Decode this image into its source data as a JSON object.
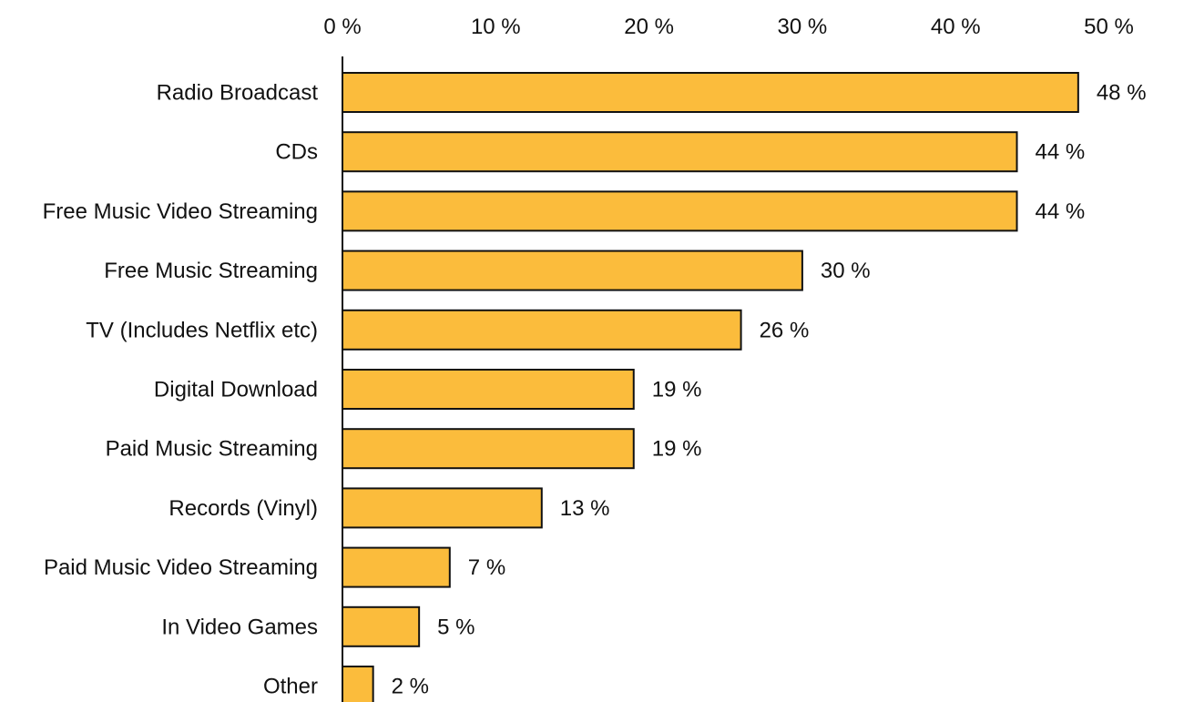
{
  "chart_data": {
    "type": "bar",
    "orientation": "horizontal",
    "title": "",
    "xlabel": "",
    "ylabel": "",
    "xlim": [
      0,
      50
    ],
    "ticks": [
      0,
      10,
      20,
      30,
      40,
      50
    ],
    "tick_labels": [
      "0 %",
      "10 %",
      "20 %",
      "30 %",
      "40 %",
      "50 %"
    ],
    "categories": [
      "Radio Broadcast",
      "CDs",
      "Free Music Video Streaming",
      "Free Music Streaming",
      "TV (Includes Netflix etc)",
      "Digital Download",
      "Paid Music Streaming",
      "Records (Vinyl)",
      "Paid Music Video Streaming",
      "In Video Games",
      "Other"
    ],
    "values": [
      48,
      44,
      44,
      30,
      26,
      19,
      19,
      13,
      7,
      5,
      2
    ],
    "value_labels": [
      "48 %",
      "44 %",
      "44 %",
      "30 %",
      "26 %",
      "19 %",
      "19 %",
      "13 %",
      "7 %",
      "5 %",
      "2 %"
    ],
    "bar_color": "#FBBC3C",
    "bar_outline_color": "#111111",
    "grid": false,
    "legend": "none",
    "x_axis_position": "top"
  }
}
